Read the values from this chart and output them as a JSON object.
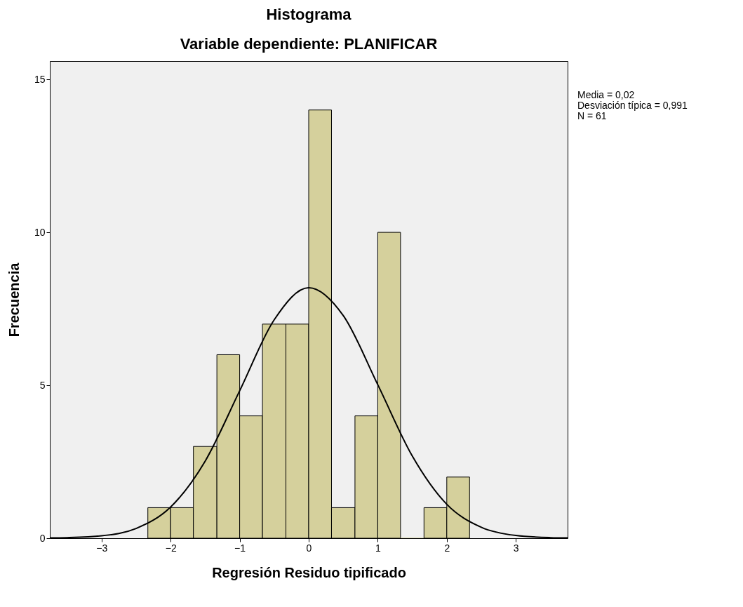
{
  "chart_data": {
    "type": "histogram",
    "title": "Histograma",
    "subtitle": "Variable dependiente: PLANIFICAR",
    "xlabel": "Regresión Residuo tipificado",
    "ylabel": "Frecuencia",
    "bins": [
      -2.33,
      -2,
      -1.67,
      -1.33,
      -1,
      -0.67,
      -0.33,
      0,
      0.33,
      0.67,
      1,
      1.33,
      1.67,
      2,
      2.33
    ],
    "values": [
      1,
      1,
      3,
      6,
      4,
      7,
      7,
      14,
      1,
      4,
      10,
      0,
      1,
      2
    ],
    "color": "#d5d09c",
    "series": [
      {
        "type": "line",
        "color": "#000000",
        "x": [
          -3.75,
          -3.5,
          -3,
          -2.5,
          -2,
          -1.5,
          -1,
          -0.5,
          0,
          0.5,
          1,
          1.5,
          2,
          2.5,
          3,
          3.5,
          3.75
        ],
        "values": [
          0.01,
          0.02,
          0.08,
          0.32,
          1.02,
          2.52,
          4.82,
          7.14,
          8.19,
          7.28,
          5.02,
          2.69,
          1.11,
          0.36,
          0.09,
          0.02,
          0.01
        ]
      }
    ],
    "xlim": [
      -3.75,
      3.75
    ],
    "xticks": [
      -3,
      -2,
      -1,
      0,
      1,
      2,
      3
    ],
    "ylim": [
      0,
      15.6
    ],
    "yticks": [
      0,
      5,
      10,
      15
    ],
    "grid": false,
    "annotations": [
      "Media = 0,02",
      "Desviación típica = 0,991",
      "N = 61"
    ]
  }
}
